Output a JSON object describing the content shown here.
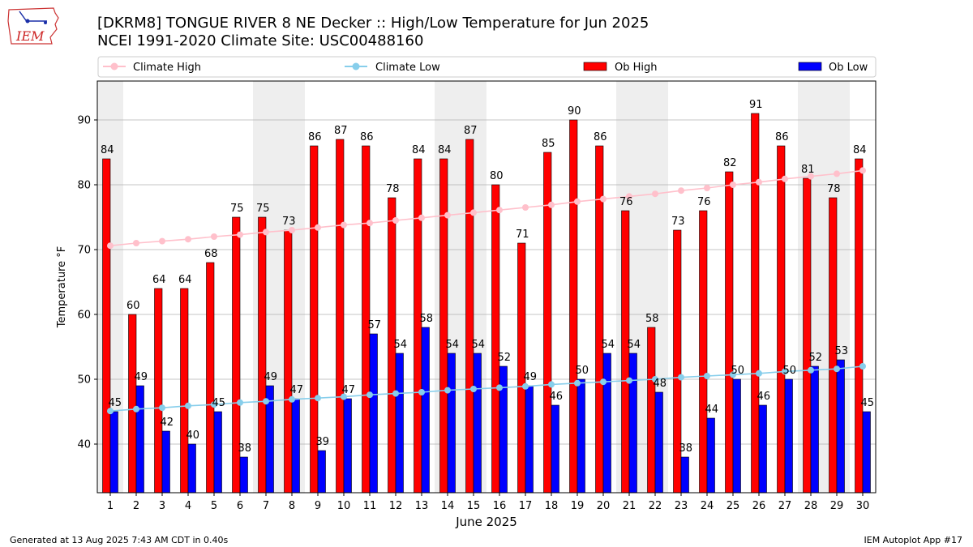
{
  "header": {
    "title_line1": "[DKRM8] TONGUE RIVER 8 NE Decker :: High/Low Temperature for Jun 2025",
    "title_line2": "NCEI 1991-2020 Climate Site: USC00488160",
    "logo_text": "IEM"
  },
  "footer": {
    "generated": "Generated at 13 Aug 2025 7:43 AM CDT in 0.40s",
    "app": "IEM Autoplot App #17"
  },
  "colors": {
    "ob_high": "#ff0000",
    "ob_low": "#0000ff",
    "climate_high": "#ffc0cb",
    "climate_low": "#87ceeb",
    "weekend_band": "#eeeeee",
    "grid": "#b0b0b0",
    "logo": "#cc2222"
  },
  "chart_data": {
    "type": "bar",
    "title": "[DKRM8] TONGUE RIVER 8 NE Decker :: High/Low Temperature for Jun 2025",
    "xlabel": "June 2025",
    "ylabel": "Temperature °F",
    "ylim": [
      32.5,
      96
    ],
    "yticks": [
      40,
      50,
      60,
      70,
      80,
      90
    ],
    "grid": true,
    "legend_position": "top",
    "categories": [
      1,
      2,
      3,
      4,
      5,
      6,
      7,
      8,
      9,
      10,
      11,
      12,
      13,
      14,
      15,
      16,
      17,
      18,
      19,
      20,
      21,
      22,
      23,
      24,
      25,
      26,
      27,
      28,
      29,
      30
    ],
    "shaded_days": [
      1,
      7,
      8,
      14,
      15,
      21,
      22,
      28,
      29
    ],
    "series": [
      {
        "name": "Ob High",
        "kind": "bar",
        "values": [
          84,
          60,
          64,
          64,
          68,
          75,
          75,
          73,
          86,
          87,
          86,
          78,
          84,
          84,
          87,
          80,
          71,
          85,
          90,
          86,
          76,
          58,
          73,
          76,
          82,
          91,
          86,
          81,
          78,
          84
        ]
      },
      {
        "name": "Ob Low",
        "kind": "bar",
        "values": [
          45,
          49,
          42,
          40,
          45,
          38,
          49,
          47,
          39,
          47,
          57,
          54,
          58,
          54,
          54,
          52,
          49,
          46,
          50,
          54,
          54,
          48,
          38,
          44,
          50,
          46,
          50,
          52,
          53,
          45
        ]
      },
      {
        "name": "Climate High",
        "kind": "line",
        "values": [
          70.6,
          71.0,
          71.3,
          71.6,
          72.0,
          72.3,
          72.7,
          73.0,
          73.4,
          73.8,
          74.1,
          74.5,
          74.9,
          75.3,
          75.7,
          76.1,
          76.5,
          76.9,
          77.4,
          77.8,
          78.2,
          78.6,
          79.1,
          79.5,
          80.0,
          80.4,
          80.9,
          81.3,
          81.7,
          82.2
        ]
      },
      {
        "name": "Climate Low",
        "kind": "line",
        "values": [
          45.1,
          45.4,
          45.6,
          45.9,
          46.1,
          46.4,
          46.6,
          46.9,
          47.1,
          47.3,
          47.6,
          47.8,
          48.0,
          48.3,
          48.5,
          48.7,
          48.9,
          49.2,
          49.4,
          49.6,
          49.8,
          50.0,
          50.3,
          50.5,
          50.7,
          50.9,
          51.2,
          51.4,
          51.6,
          52.0
        ]
      }
    ]
  }
}
